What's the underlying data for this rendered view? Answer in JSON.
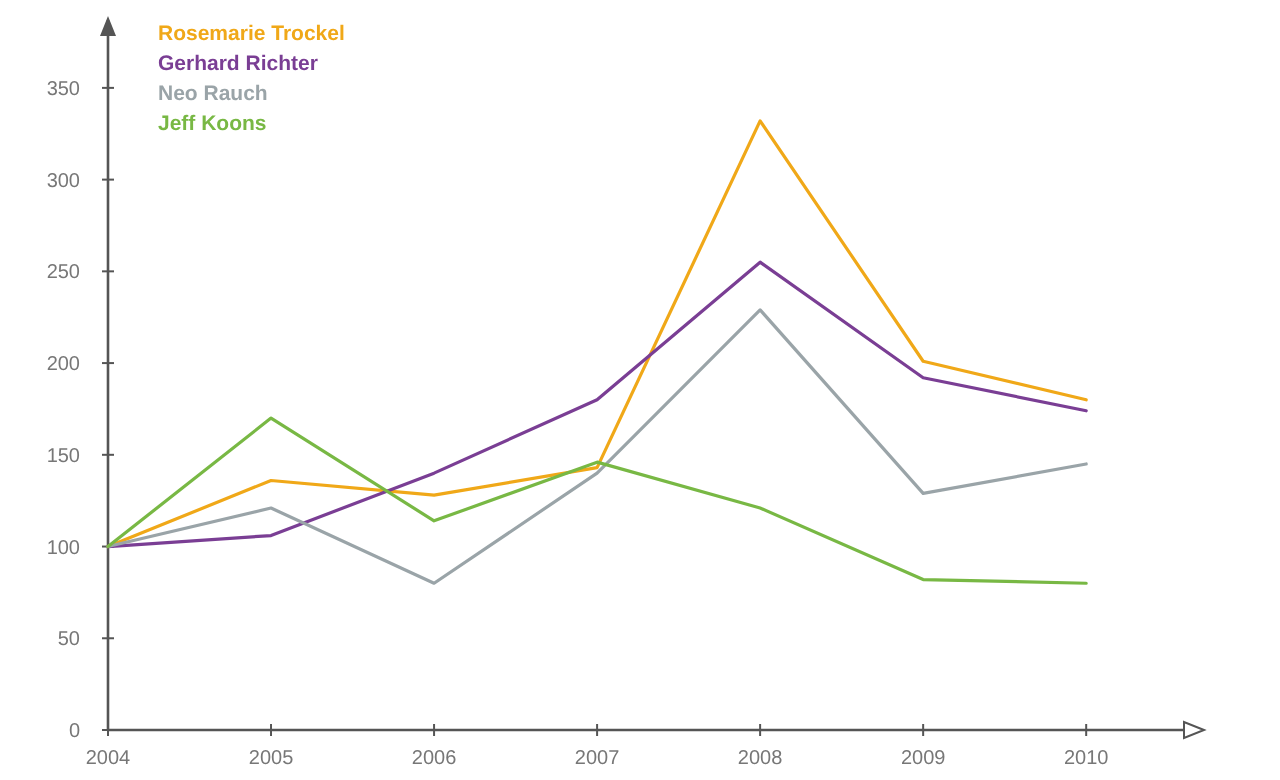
{
  "chart_data": {
    "type": "line",
    "x": [
      2004,
      2005,
      2006,
      2007,
      2008,
      2009,
      2010
    ],
    "xlim": [
      2004,
      2010.6
    ],
    "xticks": [
      2004,
      2005,
      2006,
      2007,
      2008,
      2009,
      2010
    ],
    "ylim": [
      0,
      387
    ],
    "yticks": [
      0,
      50,
      100,
      150,
      200,
      250,
      300,
      350
    ],
    "grid": false,
    "legend": "top left",
    "marker": "none",
    "line_style": "solid",
    "series": [
      {
        "name": "Rosemarie Trockel",
        "color": "#f0a818",
        "values": [
          100,
          136,
          128,
          143,
          332,
          201,
          180
        ]
      },
      {
        "name": "Gerhard Richter",
        "color": "#7a3e94",
        "values": [
          100,
          106,
          140,
          180,
          255,
          192,
          174
        ]
      },
      {
        "name": "Neo Rauch",
        "color": "#9aa4a8",
        "values": [
          100,
          121,
          80,
          140,
          229,
          129,
          145
        ]
      },
      {
        "name": "Jeff Koons",
        "color": "#78b844",
        "values": [
          100,
          170,
          114,
          146,
          121,
          82,
          80
        ]
      }
    ]
  }
}
